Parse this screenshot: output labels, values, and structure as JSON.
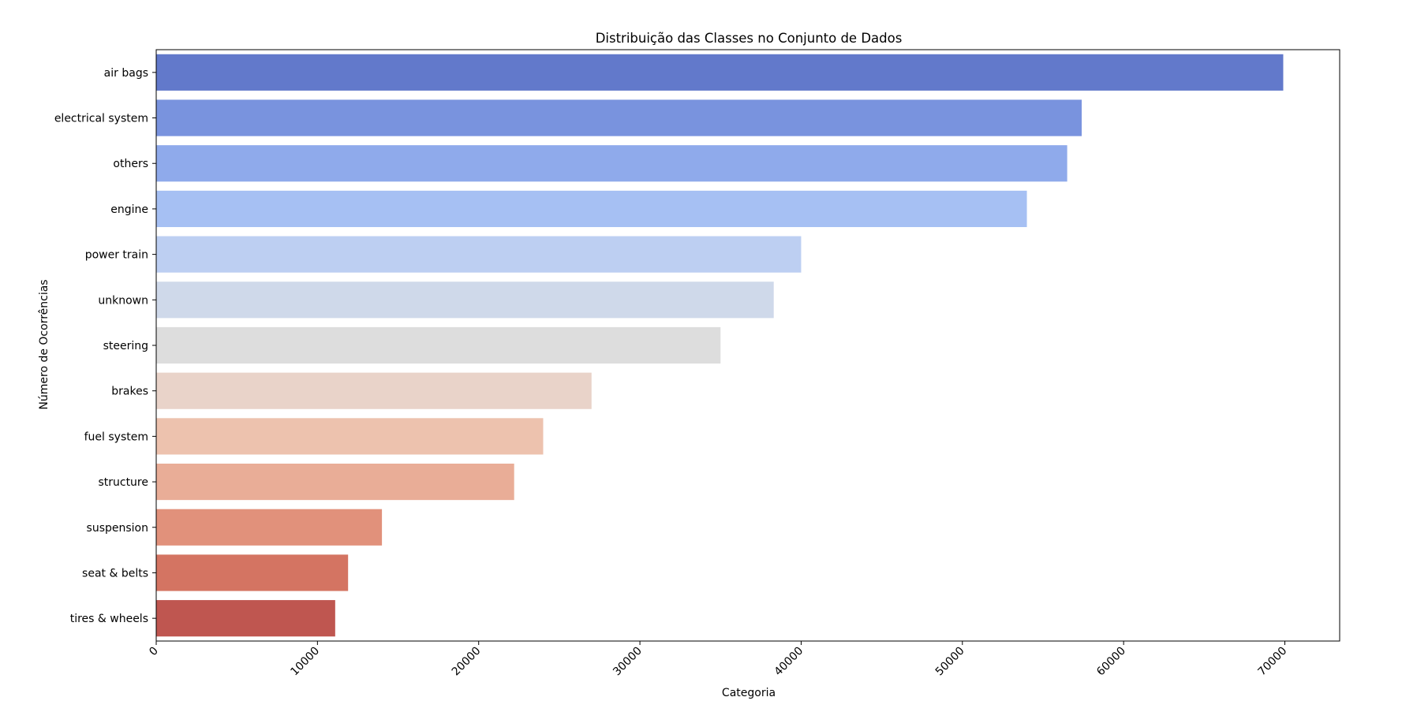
{
  "chart_data": {
    "type": "bar",
    "orientation": "horizontal",
    "title": "Distribuição das Classes no Conjunto de Dados",
    "xlabel": "Categoria",
    "ylabel": "Número de Ocorrências",
    "xlim": [
      0,
      73400
    ],
    "xticks": [
      0,
      10000,
      20000,
      30000,
      40000,
      50000,
      60000,
      70000
    ],
    "xtick_labels": [
      "0",
      "10000",
      "20000",
      "30000",
      "40000",
      "50000",
      "60000",
      "70000"
    ],
    "xtick_rotation": 45,
    "grid": false,
    "legend": "none",
    "categories": [
      "air bags",
      "electrical system",
      "others",
      "engine",
      "power train",
      "unknown",
      "steering",
      "brakes",
      "fuel system",
      "structure",
      "suspension",
      "seat & belts",
      "tires & wheels"
    ],
    "values": [
      69900,
      57400,
      56500,
      54000,
      40000,
      38300,
      35000,
      27000,
      24000,
      22200,
      14000,
      11900,
      11100
    ],
    "colors": [
      "#6279cb",
      "#7993de",
      "#8faaeb",
      "#a6c0f3",
      "#bdcff2",
      "#cfd9ea",
      "#dddddd",
      "#e9d3c9",
      "#edc2ae",
      "#e9ad97",
      "#e1917b",
      "#d47462",
      "#bf5650"
    ]
  }
}
